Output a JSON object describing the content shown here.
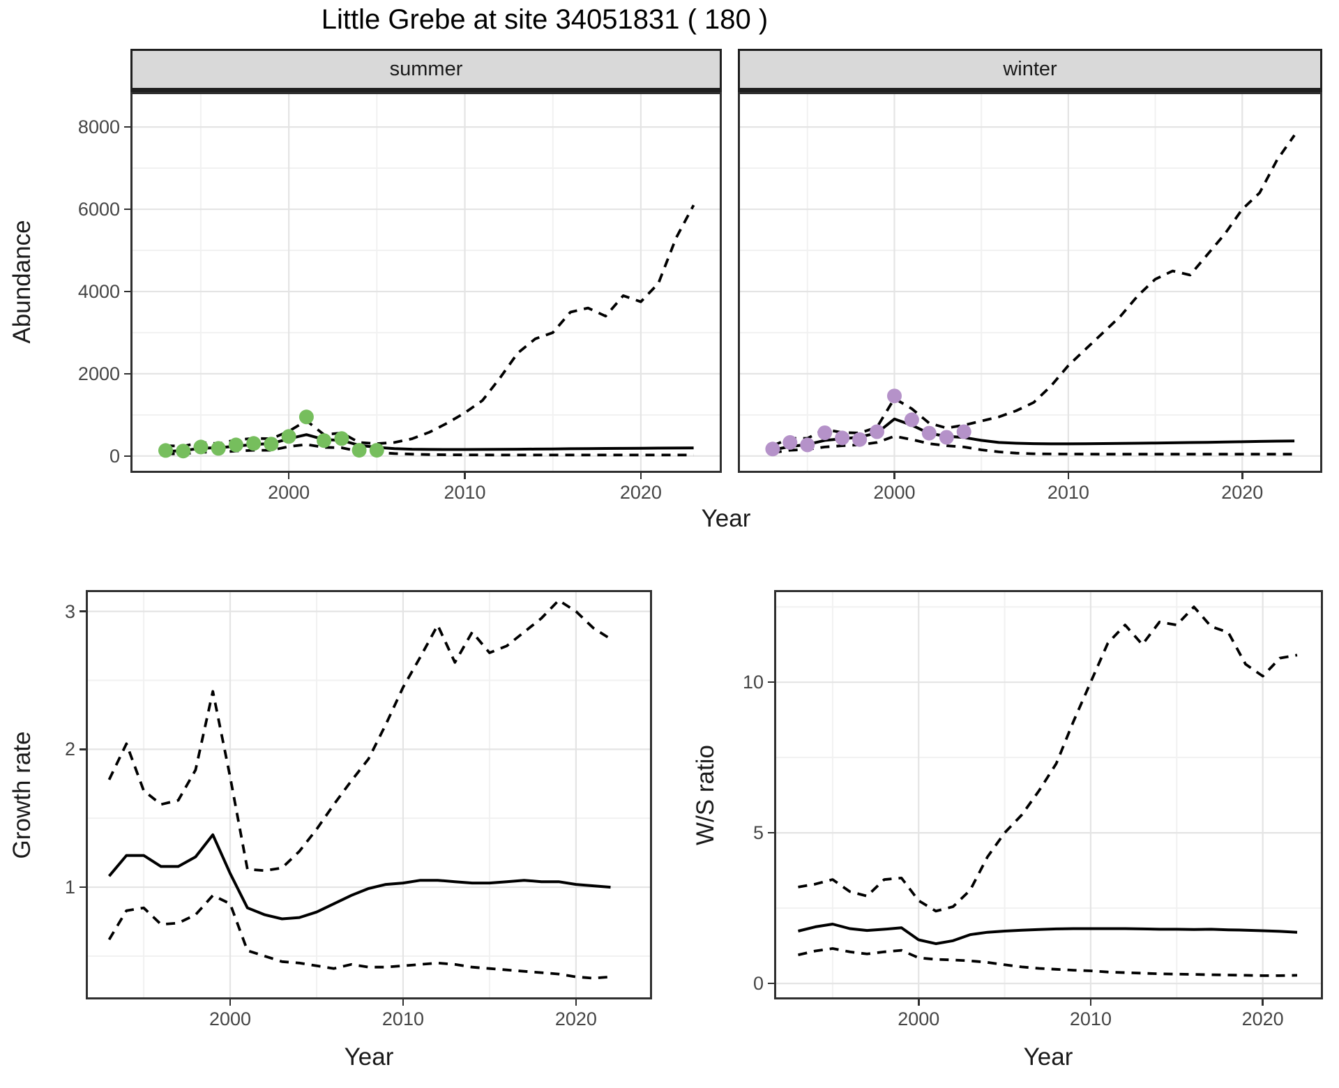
{
  "title": "Little Grebe at site 34051831 ( 180 )",
  "facets": {
    "summer": "summer",
    "winter": "winter"
  },
  "axes": {
    "abundance_label": "Abundance",
    "year_label": "Year",
    "growth_label": "Growth rate",
    "ratio_label": "W/S ratio"
  },
  "colors": {
    "summer_points": "#76be5d",
    "winter_points": "#b592c9",
    "line": "#000000",
    "strip_bg": "#d9d9d9",
    "grid_major": "#e4e4e4",
    "grid_minor": "#f1f1f1",
    "panel_border": "#2f2f2f",
    "tick_text": "#454545"
  },
  "chart_data": [
    {
      "id": "summer-abundance",
      "type": "line",
      "title": "summer facet: observed counts (points), modelled median (solid) and 95% interval (dashed)",
      "xlabel": "Year",
      "ylabel": "Abundance",
      "xlim": [
        1991.0,
        2024.6
      ],
      "ylim": [
        -410,
        8850
      ],
      "xticks": [
        2000,
        2010,
        2020
      ],
      "yticks": [
        0,
        2000,
        4000,
        6000,
        8000
      ],
      "xticks_minor": [
        1995,
        2005,
        2015
      ],
      "yticks_minor": [
        1000,
        3000,
        5000,
        7000
      ],
      "grid": true,
      "series": [
        {
          "name": "lower95",
          "style": "dashed",
          "x": [
            1993,
            1994,
            1995,
            1996,
            1997,
            1998,
            1999,
            2000,
            2001,
            2002,
            2003,
            2004,
            2005,
            2006,
            2007,
            2008,
            2009,
            2010,
            2011,
            2012,
            2013,
            2014,
            2015,
            2016,
            2017,
            2018,
            2019,
            2020,
            2021,
            2022,
            2023
          ],
          "y": [
            55,
            50,
            95,
            90,
            120,
            140,
            140,
            230,
            280,
            210,
            200,
            110,
            85,
            60,
            45,
            35,
            30,
            28,
            26,
            25,
            25,
            25,
            25,
            25,
            25,
            25,
            25,
            25,
            25,
            25,
            25
          ]
        },
        {
          "name": "upper95",
          "style": "dashed",
          "x": [
            1993,
            1994,
            1995,
            1996,
            1997,
            1998,
            1999,
            2000,
            2001,
            2002,
            2003,
            2004,
            2005,
            2006,
            2007,
            2008,
            2009,
            2010,
            2011,
            2012,
            2013,
            2014,
            2015,
            2016,
            2017,
            2018,
            2019,
            2020,
            2021,
            2022,
            2023
          ],
          "y": [
            250,
            240,
            330,
            300,
            390,
            430,
            420,
            600,
            860,
            520,
            560,
            330,
            300,
            330,
            420,
            580,
            800,
            1050,
            1350,
            1900,
            2500,
            2850,
            3000,
            3500,
            3600,
            3400,
            3900,
            3750,
            4200,
            5300,
            6100
          ]
        },
        {
          "name": "median",
          "style": "solid",
          "x": [
            1993,
            1994,
            1995,
            1996,
            1997,
            1998,
            1999,
            2000,
            2001,
            2002,
            2003,
            2004,
            2005,
            2006,
            2007,
            2008,
            2009,
            2010,
            2011,
            2012,
            2013,
            2014,
            2015,
            2016,
            2017,
            2018,
            2019,
            2020,
            2021,
            2022,
            2023
          ],
          "y": [
            110,
            130,
            190,
            200,
            240,
            280,
            300,
            420,
            520,
            400,
            380,
            260,
            210,
            180,
            165,
            160,
            158,
            158,
            160,
            162,
            165,
            168,
            172,
            176,
            180,
            183,
            186,
            189,
            192,
            194,
            195
          ]
        },
        {
          "name": "observed",
          "style": "points",
          "color_key": "summer_points",
          "x": [
            1993,
            1994,
            1995,
            1996,
            1997,
            1998,
            1999,
            2000,
            2001,
            2002,
            2003,
            2004,
            2005
          ],
          "y": [
            135,
            120,
            220,
            185,
            270,
            305,
            290,
            475,
            950,
            375,
            425,
            140,
            140
          ]
        }
      ]
    },
    {
      "id": "winter-abundance",
      "type": "line",
      "title": "winter facet: observed counts (points), modelled median (solid) and 95% interval (dashed)",
      "xlabel": "Year",
      "ylabel": "Abundance",
      "xlim": [
        1991.0,
        2024.6
      ],
      "ylim": [
        -410,
        8850
      ],
      "xticks": [
        2000,
        2010,
        2020
      ],
      "yticks": [
        0,
        2000,
        4000,
        6000,
        8000
      ],
      "xticks_minor": [
        1995,
        2005,
        2015
      ],
      "yticks_minor": [
        1000,
        3000,
        5000,
        7000
      ],
      "grid": true,
      "series": [
        {
          "name": "lower95",
          "style": "dashed",
          "x": [
            1993,
            1994,
            1995,
            1996,
            1997,
            1998,
            1999,
            2000,
            2001,
            2002,
            2003,
            2004,
            2005,
            2006,
            2007,
            2008,
            2009,
            2010,
            2011,
            2012,
            2013,
            2014,
            2015,
            2016,
            2017,
            2018,
            2019,
            2020,
            2021,
            2022,
            2023
          ],
          "y": [
            80,
            140,
            160,
            220,
            250,
            270,
            330,
            480,
            400,
            300,
            250,
            220,
            150,
            100,
            70,
            55,
            50,
            48,
            46,
            45,
            45,
            45,
            45,
            45,
            45,
            45,
            45,
            45,
            45,
            45,
            45
          ]
        },
        {
          "name": "upper95",
          "style": "dashed",
          "x": [
            1993,
            1994,
            1995,
            1996,
            1997,
            1998,
            1999,
            2000,
            2001,
            2002,
            2003,
            2004,
            2005,
            2006,
            2007,
            2008,
            2009,
            2010,
            2011,
            2012,
            2013,
            2014,
            2015,
            2016,
            2017,
            2018,
            2019,
            2020,
            2021,
            2022,
            2023
          ],
          "y": [
            250,
            430,
            430,
            650,
            570,
            560,
            700,
            1400,
            1150,
            800,
            680,
            750,
            850,
            950,
            1100,
            1300,
            1700,
            2200,
            2600,
            3000,
            3400,
            3900,
            4300,
            4500,
            4400,
            4900,
            5400,
            6000,
            6400,
            7200,
            7800
          ]
        },
        {
          "name": "median",
          "style": "solid",
          "x": [
            1993,
            1994,
            1995,
            1996,
            1997,
            1998,
            1999,
            2000,
            2001,
            2002,
            2003,
            2004,
            2005,
            2006,
            2007,
            2008,
            2009,
            2010,
            2011,
            2012,
            2013,
            2014,
            2015,
            2016,
            2017,
            2018,
            2019,
            2020,
            2021,
            2022,
            2023
          ],
          "y": [
            150,
            230,
            280,
            380,
            420,
            460,
            560,
            900,
            750,
            550,
            480,
            450,
            380,
            330,
            310,
            300,
            295,
            295,
            298,
            302,
            306,
            311,
            316,
            321,
            327,
            333,
            340,
            347,
            355,
            362,
            365
          ]
        },
        {
          "name": "observed",
          "style": "points",
          "color_key": "winter_points",
          "x": [
            1993,
            1994,
            1995,
            1996,
            1997,
            1998,
            1999,
            2000,
            2001,
            2002,
            2003,
            2004
          ],
          "y": [
            170,
            330,
            270,
            565,
            440,
            400,
            590,
            1460,
            880,
            555,
            455,
            590
          ]
        }
      ]
    },
    {
      "id": "growth-rate",
      "type": "line",
      "title": "Growth rate: median (solid) and 95% interval (dashed)",
      "xlabel": "Year",
      "ylabel": "Growth rate",
      "xlim": [
        1991.65,
        2024.4
      ],
      "ylim": [
        0.186,
        3.155
      ],
      "xticks": [
        2000,
        2010,
        2020
      ],
      "yticks": [
        1,
        2,
        3
      ],
      "xticks_minor": [
        1995,
        2005,
        2015
      ],
      "yticks_minor": [
        0.5,
        1.5,
        2.5
      ],
      "grid": true,
      "series": [
        {
          "name": "lower95",
          "style": "dashed",
          "x": [
            1993,
            1994,
            1995,
            1996,
            1997,
            1998,
            1999,
            2000,
            2001,
            2002,
            2003,
            2004,
            2005,
            2006,
            2007,
            2008,
            2009,
            2010,
            2011,
            2012,
            2013,
            2014,
            2015,
            2016,
            2017,
            2018,
            2019,
            2020,
            2021,
            2022
          ],
          "y": [
            0.62,
            0.83,
            0.85,
            0.73,
            0.74,
            0.8,
            0.94,
            0.88,
            0.54,
            0.5,
            0.46,
            0.45,
            0.43,
            0.41,
            0.44,
            0.42,
            0.42,
            0.43,
            0.44,
            0.45,
            0.44,
            0.42,
            0.41,
            0.4,
            0.39,
            0.38,
            0.37,
            0.35,
            0.34,
            0.35
          ]
        },
        {
          "name": "upper95",
          "style": "dashed",
          "x": [
            1993,
            1994,
            1995,
            1996,
            1997,
            1998,
            1999,
            2000,
            2001,
            2002,
            2003,
            2004,
            2005,
            2006,
            2007,
            2008,
            2009,
            2010,
            2011,
            2012,
            2013,
            2014,
            2015,
            2016,
            2017,
            2018,
            2019,
            2020,
            2021,
            2022
          ],
          "y": [
            1.78,
            2.04,
            1.7,
            1.6,
            1.63,
            1.85,
            2.42,
            1.8,
            1.13,
            1.12,
            1.14,
            1.26,
            1.42,
            1.6,
            1.77,
            1.93,
            2.18,
            2.45,
            2.67,
            2.9,
            2.63,
            2.85,
            2.7,
            2.75,
            2.85,
            2.95,
            3.08,
            3.0,
            2.88,
            2.8
          ]
        },
        {
          "name": "median",
          "style": "solid",
          "x": [
            1993,
            1994,
            1995,
            1996,
            1997,
            1998,
            1999,
            2000,
            2001,
            2002,
            2003,
            2004,
            2005,
            2006,
            2007,
            2008,
            2009,
            2010,
            2011,
            2012,
            2013,
            2014,
            2015,
            2016,
            2017,
            2018,
            2019,
            2020,
            2021,
            2022
          ],
          "y": [
            1.08,
            1.23,
            1.23,
            1.15,
            1.15,
            1.22,
            1.38,
            1.1,
            0.85,
            0.8,
            0.77,
            0.78,
            0.82,
            0.88,
            0.94,
            0.99,
            1.02,
            1.03,
            1.05,
            1.05,
            1.04,
            1.03,
            1.03,
            1.04,
            1.05,
            1.04,
            1.04,
            1.02,
            1.01,
            1.0
          ]
        }
      ]
    },
    {
      "id": "ws-ratio",
      "type": "line",
      "title": "Winter/Summer ratio: median (solid) and 95% interval (dashed)",
      "xlabel": "Year",
      "ylabel": "W/S ratio",
      "xlim": [
        1991.6,
        2023.5
      ],
      "ylim": [
        -0.53,
        13.06
      ],
      "xticks": [
        2000,
        2010,
        2020
      ],
      "yticks": [
        0,
        5,
        10
      ],
      "xticks_minor": [
        1995,
        2005,
        2015
      ],
      "yticks_minor": [
        2.5,
        7.5,
        12.5
      ],
      "grid": true,
      "series": [
        {
          "name": "lower95",
          "style": "dashed",
          "x": [
            1993,
            1994,
            1995,
            1996,
            1997,
            1998,
            1999,
            2000,
            2001,
            2002,
            2003,
            2004,
            2005,
            2006,
            2007,
            2008,
            2009,
            2010,
            2011,
            2012,
            2013,
            2014,
            2015,
            2016,
            2017,
            2018,
            2019,
            2020,
            2021,
            2022
          ],
          "y": [
            0.95,
            1.08,
            1.16,
            1.05,
            0.98,
            1.05,
            1.1,
            0.85,
            0.8,
            0.78,
            0.75,
            0.7,
            0.62,
            0.55,
            0.5,
            0.47,
            0.44,
            0.42,
            0.38,
            0.36,
            0.34,
            0.32,
            0.31,
            0.3,
            0.29,
            0.28,
            0.27,
            0.26,
            0.26,
            0.27
          ]
        },
        {
          "name": "upper95",
          "style": "dashed",
          "x": [
            1993,
            1994,
            1995,
            1996,
            1997,
            1998,
            1999,
            2000,
            2001,
            2002,
            2003,
            2004,
            2005,
            2006,
            2007,
            2008,
            2009,
            2010,
            2011,
            2012,
            2013,
            2014,
            2015,
            2016,
            2017,
            2018,
            2019,
            2020,
            2021,
            2022
          ],
          "y": [
            3.2,
            3.3,
            3.45,
            3.05,
            2.9,
            3.45,
            3.5,
            2.75,
            2.4,
            2.55,
            3.1,
            4.2,
            5.0,
            5.6,
            6.4,
            7.3,
            8.7,
            10.0,
            11.3,
            11.9,
            11.25,
            12.0,
            11.9,
            12.5,
            11.85,
            11.65,
            10.6,
            10.2,
            10.8,
            10.9
          ]
        },
        {
          "name": "median",
          "style": "solid",
          "x": [
            1993,
            1994,
            1995,
            1996,
            1997,
            1998,
            1999,
            2000,
            2001,
            2002,
            2003,
            2004,
            2005,
            2006,
            2007,
            2008,
            2009,
            2010,
            2011,
            2012,
            2013,
            2014,
            2015,
            2016,
            2017,
            2018,
            2019,
            2020,
            2021,
            2022
          ],
          "y": [
            1.74,
            1.88,
            1.97,
            1.82,
            1.76,
            1.8,
            1.85,
            1.45,
            1.32,
            1.42,
            1.62,
            1.7,
            1.74,
            1.77,
            1.79,
            1.81,
            1.82,
            1.82,
            1.82,
            1.82,
            1.81,
            1.8,
            1.8,
            1.79,
            1.8,
            1.78,
            1.77,
            1.75,
            1.73,
            1.7
          ]
        }
      ]
    }
  ]
}
